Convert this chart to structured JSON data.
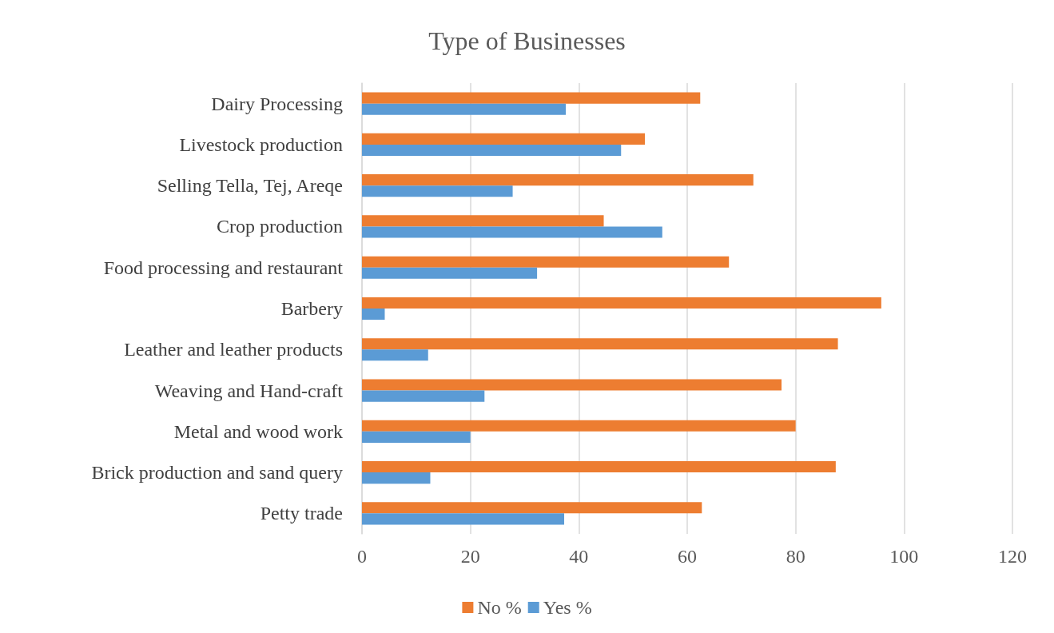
{
  "chart_data": {
    "type": "bar",
    "orientation": "horizontal",
    "title": "Type of Businesses",
    "categories": [
      "Dairy Processing",
      "Livestock production",
      "Selling Tella, Tej, Areqe",
      "Crop production",
      "Food processing and restaurant",
      "Barbery",
      "Leather and leather products",
      "Weaving and Hand-craft",
      "Metal and wood work",
      "Brick production and sand query",
      "Petty trade"
    ],
    "series": [
      {
        "name": "No %",
        "color": "#ed7d31",
        "values": [
          62.4,
          52.2,
          72.2,
          44.6,
          67.7,
          95.8,
          87.8,
          77.4,
          80.0,
          87.4,
          62.7
        ]
      },
      {
        "name": "Yes %",
        "color": "#5b9bd5",
        "values": [
          37.6,
          47.8,
          27.8,
          55.4,
          32.3,
          4.2,
          12.2,
          22.6,
          20.0,
          12.6,
          37.3
        ]
      }
    ],
    "xlim": [
      0,
      120
    ],
    "xticks": [
      0,
      20,
      40,
      60,
      80,
      100,
      120
    ],
    "grid": "x",
    "legend": "bottom"
  }
}
